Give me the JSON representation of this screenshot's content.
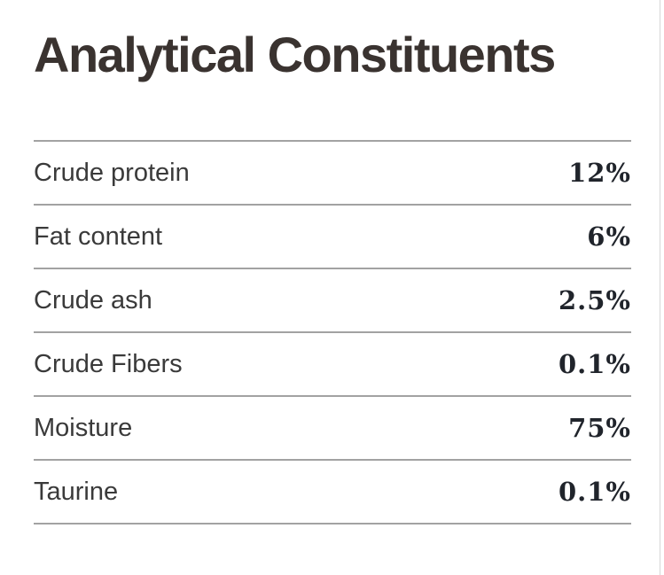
{
  "section": {
    "title": "Analytical Constituents",
    "rows": [
      {
        "label": "Crude protein",
        "value": "12%"
      },
      {
        "label": "Fat content",
        "value": "6%"
      },
      {
        "label": "Crude ash",
        "value": "2.5%"
      },
      {
        "label": "Crude Fibers",
        "value": "0.1%"
      },
      {
        "label": "Moisture",
        "value": "75%"
      },
      {
        "label": "Taurine",
        "value": "0.1%"
      }
    ]
  },
  "colors": {
    "background": "#ffffff",
    "title": "#3a3330",
    "label": "#3a3a3a",
    "value": "#20242b",
    "divider": "#a2a2a2",
    "page_edge": "#d6d6d6"
  }
}
